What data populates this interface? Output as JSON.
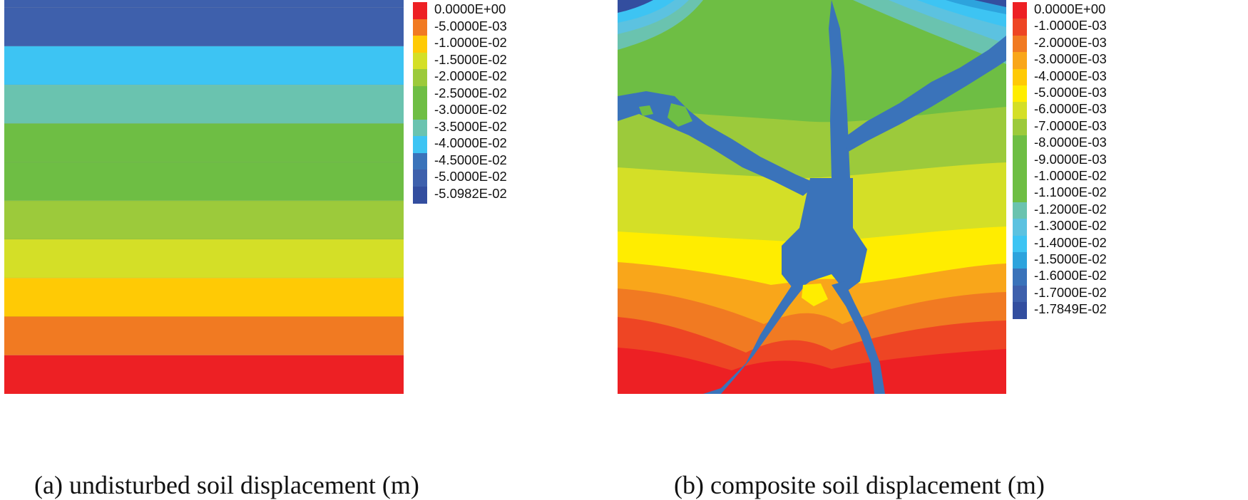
{
  "colors": {
    "red": "#ED2024",
    "red_orange": "#EE4524",
    "orange": "#F17A22",
    "amber": "#F9A61A",
    "gold": "#FFCA05",
    "yellow": "#FFED00",
    "yellow_green": "#D4DF27",
    "light_green": "#9CCA3B",
    "green": "#6EBE44",
    "teal": "#6AC3AF",
    "sky": "#5CC2E0",
    "cyan": "#3DC4F3",
    "blue": "#2DA3DD",
    "mid_blue": "#3A73BA",
    "dark_blue": "#3E60AC",
    "navy": "#334E9F"
  },
  "chart_data": [
    {
      "type": "heatmap",
      "caption": "(a) undisturbed soil displacement (m)",
      "legend_entries": [
        "0.0000E+00",
        "-5.0000E-03",
        "-1.0000E-02",
        "-1.5000E-02",
        "-2.0000E-02",
        "-2.5000E-02",
        "-3.0000E-02",
        "-3.5000E-02",
        "-4.0000E-02",
        "-4.5000E-02",
        "-5.0000E-02",
        "-5.0982E-02"
      ],
      "legend_colors": [
        "#ED2024",
        "#F17A22",
        "#FFCA05",
        "#D4DF27",
        "#9CCA3B",
        "#6EBE44",
        "#6EBE44",
        "#6AC3AF",
        "#3DC4F3",
        "#3A73BA",
        "#3E60AC",
        "#334E9F"
      ],
      "value_range": [
        -0.050982,
        0.0
      ],
      "bands_top_to_bottom": [
        {
          "range": [
            -0.050982,
            -0.05
          ],
          "color": "#3E60AC"
        },
        {
          "range": [
            -0.05,
            -0.045
          ],
          "color": "#3E60AC"
        },
        {
          "range": [
            -0.045,
            -0.04
          ],
          "color": "#3DC4F3"
        },
        {
          "range": [
            -0.04,
            -0.035
          ],
          "color": "#6AC3AF"
        },
        {
          "range": [
            -0.035,
            -0.03
          ],
          "color": "#6EBE44"
        },
        {
          "range": [
            -0.03,
            -0.025
          ],
          "color": "#6EBE44"
        },
        {
          "range": [
            -0.025,
            -0.02
          ],
          "color": "#9CCA3B"
        },
        {
          "range": [
            -0.02,
            -0.015
          ],
          "color": "#D4DF27"
        },
        {
          "range": [
            -0.015,
            -0.01
          ],
          "color": "#FFCA05"
        },
        {
          "range": [
            -0.01,
            -0.005
          ],
          "color": "#F17A22"
        },
        {
          "range": [
            -0.005,
            0.0
          ],
          "color": "#ED2024"
        }
      ]
    },
    {
      "type": "heatmap",
      "caption": "(b) composite soil displacement (m)",
      "legend_entries": [
        "0.0000E+00",
        "-1.0000E-03",
        "-2.0000E-03",
        "-3.0000E-03",
        "-4.0000E-03",
        "-5.0000E-03",
        "-6.0000E-03",
        "-7.0000E-03",
        "-8.0000E-03",
        "-9.0000E-03",
        "-1.0000E-02",
        "-1.1000E-02",
        "-1.2000E-02",
        "-1.3000E-02",
        "-1.4000E-02",
        "-1.5000E-02",
        "-1.6000E-02",
        "-1.7000E-02",
        "-1.7849E-02"
      ],
      "legend_colors": [
        "#ED2024",
        "#EE4524",
        "#F17A22",
        "#F9A61A",
        "#FFCA05",
        "#FFED00",
        "#D4DF27",
        "#9CCA3B",
        "#6EBE44",
        "#6EBE44",
        "#6EBE44",
        "#6EBE44",
        "#6AC3AF",
        "#5CC2E0",
        "#3DC4F3",
        "#2DA3DD",
        "#3A73BA",
        "#3E60AC",
        "#334E9F"
      ],
      "value_range": [
        -0.017849,
        0.0
      ],
      "crack_color": "#3A73BA"
    }
  ]
}
